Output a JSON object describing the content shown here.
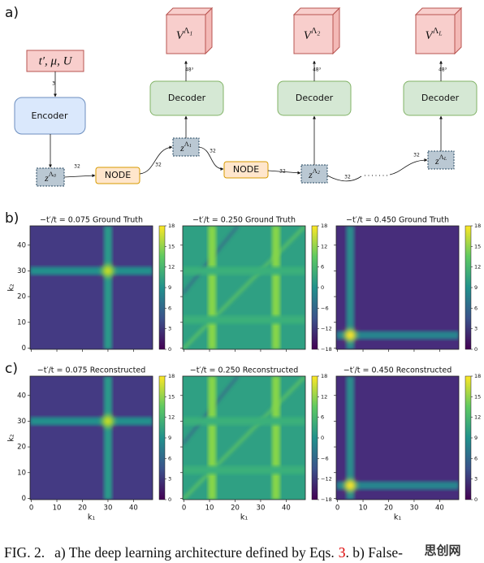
{
  "diagram": {
    "label": "a)",
    "input": "t′, μ, U",
    "encoder": "Encoder",
    "decoders": [
      "Decoder",
      "Decoder",
      "Decoder"
    ],
    "nodes": [
      "NODE",
      "NODE"
    ],
    "latents": [
      {
        "base": "z",
        "sup": "Λ",
        "sub": "0"
      },
      {
        "base": "z",
        "sup": "Λ",
        "sub": "1"
      },
      {
        "base": "z",
        "sup": "Λ",
        "sub": "2"
      },
      {
        "base": "z",
        "sup": "Λ",
        "sub": "L"
      }
    ],
    "outputs": [
      {
        "base": "V",
        "sup": "Λ",
        "sub": "1"
      },
      {
        "base": "V",
        "sup": "Λ",
        "sub": "2"
      },
      {
        "base": "V",
        "sup": "Λ",
        "sub": "L"
      }
    ],
    "edge_labels": [
      "3",
      "32",
      "32",
      "32",
      "32",
      "32",
      "32",
      "48³",
      "48³",
      "48³"
    ]
  },
  "heatmaps": {
    "row_labels": [
      "b)",
      "c)"
    ],
    "xlabel": "k₁",
    "ylabel": "k₂",
    "xlim": [
      -0.5,
      47.5
    ],
    "ylim": [
      -0.5,
      47.5
    ],
    "xticks": [
      0,
      10,
      20,
      30,
      40
    ],
    "yticks": [
      0,
      10,
      20,
      30,
      40
    ],
    "panels": [
      {
        "title": "−t′/t = 0.075 Ground Truth",
        "clim": [
          0,
          18
        ],
        "cticks": [
          0,
          3,
          6,
          9,
          12,
          15,
          18
        ]
      },
      {
        "title": "−t′/t = 0.250 Ground Truth",
        "clim": [
          -18,
          18
        ],
        "cticks": [
          {
            "value": -18,
            "label": "−18"
          },
          {
            "value": -12,
            "label": "−12"
          },
          {
            "value": -6,
            "label": "−6"
          },
          0,
          6,
          12,
          18
        ]
      },
      {
        "title": "−t′/t = 0.450 Ground Truth",
        "clim": [
          0,
          18
        ],
        "cticks": [
          0,
          3,
          6,
          9,
          12,
          15,
          18
        ]
      },
      {
        "title": "−t′/t = 0.075 Reconstructed",
        "clim": [
          0,
          18
        ],
        "cticks": [
          0,
          3,
          6,
          9,
          12,
          15,
          18
        ]
      },
      {
        "title": "−t′/t = 0.250 Reconstructed",
        "clim": [
          -18,
          18
        ],
        "cticks": [
          {
            "value": -18,
            "label": "−18"
          },
          {
            "value": -12,
            "label": "−12"
          },
          {
            "value": -6,
            "label": "−6"
          },
          0,
          6,
          12,
          18
        ]
      },
      {
        "title": "−t′/t = 0.450 Reconstructed",
        "clim": [
          0,
          18
        ],
        "cticks": [
          0,
          3,
          6,
          9,
          12,
          15,
          18
        ]
      }
    ]
  },
  "caption": {
    "fig": "FIG. 2.",
    "text": "a) The deep learning architecture defined by Eqs.",
    "ref": "3",
    "rest": ". b) False-",
    "watermark": "思创网"
  }
}
